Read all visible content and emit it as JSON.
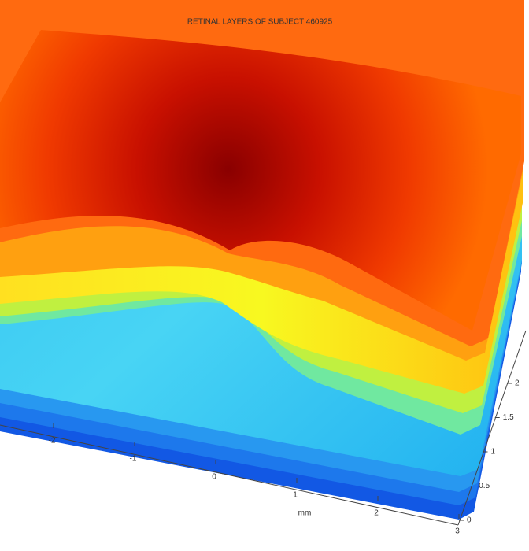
{
  "chart_data": {
    "type": "surface3d",
    "title": "RETINAL LAYERS OF SUBJECT 460925",
    "xlabel": "mm",
    "xlim": [
      -3,
      3
    ],
    "xticks": [
      -2,
      -1,
      0,
      1,
      2,
      3
    ],
    "ylim": [
      0,
      2
    ],
    "yticks": [
      0,
      0.5,
      1,
      1.5,
      2
    ]
  }
}
